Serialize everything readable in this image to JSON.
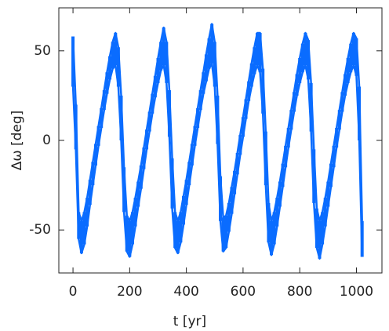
{
  "chart_data": {
    "type": "range",
    "x_label": "t [yr]",
    "y_label": "Δω [deg]",
    "color": "#0a6cff",
    "xlim": [
      -50,
      1090
    ],
    "ylim": [
      -74,
      74
    ],
    "xticks": [
      0,
      200,
      400,
      600,
      800,
      1000
    ],
    "yticks": [
      -50,
      0,
      50
    ],
    "x": [
      0,
      10,
      20,
      30,
      40,
      50,
      60,
      70,
      80,
      90,
      100,
      110,
      120,
      130,
      140,
      150,
      160,
      170,
      180,
      190,
      200,
      210,
      220,
      230,
      240,
      250,
      260,
      270,
      280,
      290,
      300,
      310,
      320,
      330,
      340,
      350,
      360,
      370,
      380,
      390,
      400,
      410,
      420,
      430,
      440,
      450,
      460,
      470,
      480,
      490,
      500,
      510,
      520,
      530,
      540,
      550,
      560,
      570,
      580,
      590,
      600,
      610,
      620,
      630,
      640,
      650,
      660,
      670,
      680,
      690,
      700,
      710,
      720,
      730,
      740,
      750,
      760,
      770,
      780,
      790,
      800,
      810,
      820,
      830,
      840,
      850,
      860,
      870,
      880,
      890,
      900,
      910,
      920,
      930,
      940,
      950,
      960,
      970,
      980,
      990,
      1000,
      1010,
      1020
    ],
    "upper": [
      58,
      20,
      -40,
      -45,
      -40,
      -32,
      -22,
      -12,
      -2,
      8,
      18,
      28,
      38,
      47,
      55,
      60,
      52,
      25,
      -15,
      -42,
      -45,
      -40,
      -32,
      -23,
      -14,
      -4,
      6,
      16,
      26,
      36,
      46,
      55,
      63,
      55,
      28,
      -10,
      -40,
      -45,
      -40,
      -31,
      -22,
      -12,
      -2,
      8,
      18,
      28,
      38,
      48,
      57,
      65,
      55,
      25,
      -20,
      -43,
      -42,
      -35,
      -26,
      -17,
      -7,
      3,
      13,
      23,
      33,
      43,
      52,
      60,
      60,
      40,
      5,
      -35,
      -45,
      -40,
      -32,
      -23,
      -13,
      -3,
      7,
      17,
      27,
      37,
      46,
      54,
      60,
      56,
      32,
      -5,
      -38,
      -45,
      -40,
      -32,
      -23,
      -13,
      -3,
      7,
      17,
      27,
      37,
      46,
      54,
      60,
      57,
      30,
      -45
    ],
    "lower": [
      30,
      -5,
      -55,
      -63,
      -58,
      -48,
      -36,
      -25,
      -14,
      -3,
      7,
      17,
      26,
      34,
      40,
      42,
      30,
      0,
      -40,
      -62,
      -65,
      -58,
      -48,
      -37,
      -27,
      -16,
      -5,
      5,
      15,
      24,
      32,
      39,
      42,
      32,
      2,
      -38,
      -60,
      -63,
      -57,
      -47,
      -36,
      -25,
      -14,
      -3,
      7,
      17,
      26,
      33,
      40,
      43,
      30,
      -2,
      -45,
      -62,
      -60,
      -51,
      -41,
      -30,
      -19,
      -8,
      2,
      12,
      22,
      30,
      37,
      42,
      38,
      15,
      -25,
      -57,
      -64,
      -58,
      -48,
      -37,
      -26,
      -15,
      -4,
      6,
      16,
      25,
      32,
      38,
      42,
      34,
      5,
      -35,
      -60,
      -66,
      -58,
      -48,
      -37,
      -26,
      -15,
      -4,
      6,
      16,
      25,
      32,
      38,
      42,
      36,
      0,
      -65
    ]
  }
}
